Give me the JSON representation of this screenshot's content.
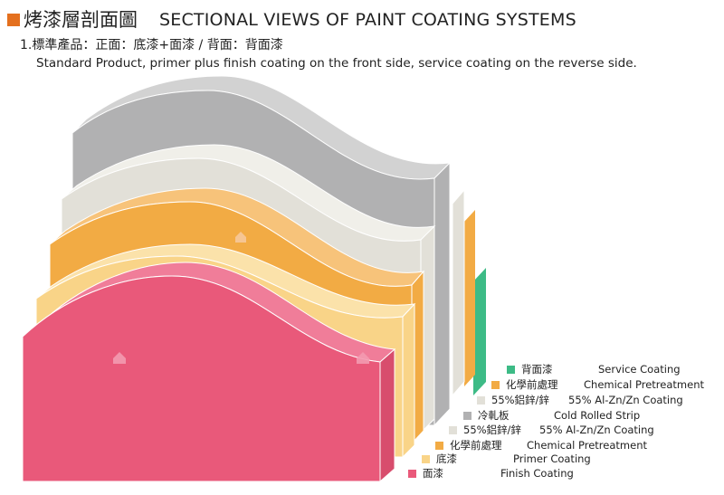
{
  "header": {
    "title_zh": "烤漆層剖面圖",
    "title_en": "SECTIONAL VIEWS OF PAINT COATING SYSTEMS",
    "subtitle_zh": "1.標準產品：正面：底漆+面漆 / 背面：背面漆",
    "subtitle_en": "Standard Product, primer plus finish coating on the front side, service coating on the reverse side."
  },
  "colors": {
    "service_coating": "#3dbb86",
    "chemical_pretreatment": "#f2ab44",
    "alznc_coating": "#e2e0d8",
    "cold_rolled_strip": "#b1b1b2",
    "primer_coating": "#f9d488",
    "finish_coating": "#e9597a"
  },
  "legend": [
    {
      "zh": "背面漆",
      "en": "Service Coating",
      "color": "#3dbb86"
    },
    {
      "zh": "化學前處理",
      "en": "Chemical Pretreatment",
      "color": "#f2ab44"
    },
    {
      "zh": "55%鋁鋅/鋅",
      "en": "55% Al-Zn/Zn Coating",
      "color": "#e2e0d8"
    },
    {
      "zh": "冷軋板",
      "en": "Cold Rolled Strip",
      "color": "#b1b1b2"
    },
    {
      "zh": "55%鋁鋅/鋅",
      "en": "55% Al-Zn/Zn Coating",
      "color": "#e2e0d8"
    },
    {
      "zh": "化學前處理",
      "en": "Chemical Pretreatment",
      "color": "#f2ab44"
    },
    {
      "zh": "底漆",
      "en": "Primer Coating",
      "color": "#f9d488"
    },
    {
      "zh": "面漆",
      "en": "Finish Coating",
      "color": "#e9597a"
    }
  ]
}
